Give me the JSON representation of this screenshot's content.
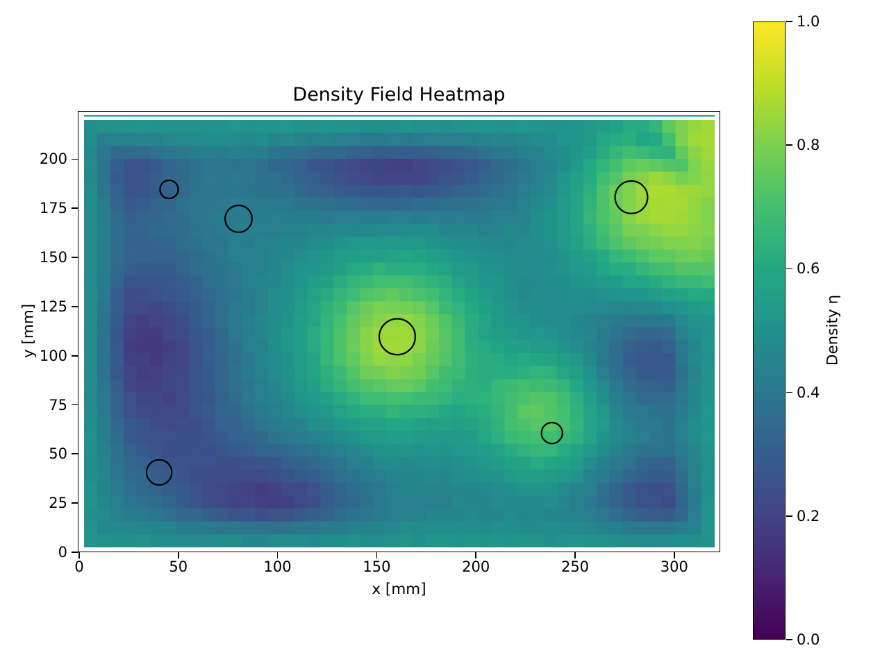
{
  "title": "Density Field Heatmap",
  "axes": {
    "xlabel": "x [mm]",
    "ylabel": "y [mm]",
    "xticks": [
      0,
      50,
      100,
      150,
      200,
      250,
      300
    ],
    "yticks": [
      0,
      25,
      50,
      75,
      100,
      125,
      150,
      175,
      200
    ]
  },
  "colorbar": {
    "label": "Density η",
    "ticks": [
      {
        "value": 0.0,
        "label": "0.0"
      },
      {
        "value": 0.2,
        "label": "0.2"
      },
      {
        "value": 0.4,
        "label": "0.4"
      },
      {
        "value": 0.6,
        "label": "0.6"
      },
      {
        "value": 0.8,
        "label": "0.8"
      },
      {
        "value": 1.0,
        "label": "1.0"
      }
    ]
  },
  "colors": {
    "background": "#ffffff",
    "text": "#000000",
    "spine": "#000000",
    "marker_outline": "#000000",
    "top_edge_line": "#2c9a95"
  },
  "chart_data": {
    "type": "heatmap",
    "title": "Density Field Heatmap",
    "xlabel": "x [mm]",
    "ylabel": "y [mm]",
    "colorbar_label": "Density η",
    "colormap": "viridis",
    "value_range": [
      0,
      1
    ],
    "extent_mm": {
      "x": [
        0,
        320
      ],
      "y": [
        0,
        220
      ]
    },
    "grid_cells": {
      "cols": 48,
      "rows": 33
    },
    "base_value": 0.44,
    "edge_plateau": {
      "value": 0.53,
      "width_mm": 22
    },
    "gaussian_features": [
      {
        "x": 158,
        "y": 108,
        "amp": 0.42,
        "sx": 30,
        "sy": 30,
        "note": "central bright blob"
      },
      {
        "x": 233,
        "y": 70,
        "amp": 0.3,
        "sx": 22,
        "sy": 22,
        "note": "lower-right bright blob"
      },
      {
        "x": 282,
        "y": 175,
        "amp": 0.34,
        "sx": 26,
        "sy": 26,
        "note": "upper-right bright blob"
      },
      {
        "x": 322,
        "y": 215,
        "amp": 0.38,
        "sx": 28,
        "sy": 28,
        "note": "top-right corner bright"
      },
      {
        "x": 320,
        "y": 150,
        "amp": 0.22,
        "sx": 20,
        "sy": 20,
        "note": "right-edge bright band"
      },
      {
        "x": 34,
        "y": 108,
        "amp": -0.26,
        "sx": 26,
        "sy": 34,
        "note": "left-middle dark dip"
      },
      {
        "x": 158,
        "y": 197,
        "amp": -0.26,
        "sx": 42,
        "sy": 16,
        "note": "top-middle dark band"
      },
      {
        "x": 98,
        "y": 27,
        "amp": -0.24,
        "sx": 30,
        "sy": 18,
        "note": "bottom-left dark band"
      },
      {
        "x": 287,
        "y": 97,
        "amp": -0.19,
        "sx": 18,
        "sy": 18,
        "note": "right-middle dark dip"
      },
      {
        "x": 292,
        "y": 28,
        "amp": -0.21,
        "sx": 22,
        "sy": 16,
        "note": "bottom-right dark dip"
      },
      {
        "x": 22,
        "y": 196,
        "amp": -0.18,
        "sx": 22,
        "sy": 22,
        "note": "top-left dark dip"
      },
      {
        "x": 55,
        "y": 55,
        "amp": -0.12,
        "sx": 25,
        "sy": 25,
        "note": "lower-left shading"
      },
      {
        "x": 286,
        "y": 211,
        "amp": -0.13,
        "sx": 6,
        "sy": 6,
        "note": "corner teal streak a"
      },
      {
        "x": 295,
        "y": 204,
        "amp": -0.15,
        "sx": 6,
        "sy": 6,
        "note": "corner teal streak b"
      },
      {
        "x": 304,
        "y": 196,
        "amp": -0.12,
        "sx": 6,
        "sy": 6,
        "note": "corner teal streak c"
      }
    ],
    "markers_circles_mm": [
      {
        "x": 45,
        "y": 185,
        "r": 4.6
      },
      {
        "x": 80,
        "y": 170,
        "r": 6.8
      },
      {
        "x": 160,
        "y": 110,
        "r": 9.1
      },
      {
        "x": 238,
        "y": 61,
        "r": 5.3
      },
      {
        "x": 278,
        "y": 181,
        "r": 8.2
      },
      {
        "x": 40,
        "y": 41,
        "r": 6.4
      }
    ],
    "viridis_stops": [
      [
        0.0,
        "#440154"
      ],
      [
        0.1,
        "#482475"
      ],
      [
        0.2,
        "#414487"
      ],
      [
        0.3,
        "#355f8d"
      ],
      [
        0.4,
        "#2a788e"
      ],
      [
        0.5,
        "#21918c"
      ],
      [
        0.6,
        "#22a884"
      ],
      [
        0.7,
        "#44bf70"
      ],
      [
        0.8,
        "#7ad151"
      ],
      [
        0.9,
        "#bddf26"
      ],
      [
        1.0,
        "#fde725"
      ]
    ],
    "legend_position": "right-colorbar",
    "grid": false
  }
}
